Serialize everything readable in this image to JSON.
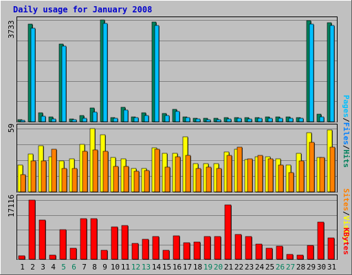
{
  "title": "Daily usage for January 2008",
  "colors": {
    "background": "#c0c0c0",
    "title": "#0000cc",
    "hits": "#00805c",
    "files": "#0080ff",
    "pages": "#00c0ff",
    "visits": "#ffff00",
    "sites": "#ff8000",
    "kbytes": "#ff0000",
    "weekday_label": "#000000",
    "weekend_label": "#00805c",
    "slash": "#000000"
  },
  "chart_data": [
    {
      "type": "bar",
      "panel": "hits-files-pages",
      "max_label": "3733",
      "ylim": [
        0,
        3733
      ],
      "categories": [
        "1",
        "2",
        "3",
        "4",
        "5",
        "6",
        "7",
        "8",
        "9",
        "10",
        "11",
        "12",
        "13",
        "14",
        "15",
        "16",
        "17",
        "18",
        "19",
        "20",
        "21",
        "22",
        "23",
        "24",
        "25",
        "26",
        "27",
        "28",
        "29",
        "30",
        "31"
      ],
      "weekend_days": [
        "5",
        "6",
        "12",
        "13",
        "19",
        "20",
        "26",
        "27"
      ],
      "legend": [
        {
          "name": "Pages",
          "color": "#00c0ff"
        },
        {
          "name": "Files",
          "color": "#0080ff"
        },
        {
          "name": "Hits",
          "color": "#00805c"
        }
      ],
      "series": [
        {
          "name": "Hits",
          "color": "#00805c",
          "values": [
            85,
            3590,
            330,
            170,
            2850,
            110,
            230,
            500,
            3733,
            140,
            520,
            180,
            330,
            3660,
            300,
            450,
            180,
            130,
            120,
            120,
            140,
            160,
            140,
            160,
            180,
            180,
            180,
            160,
            3710,
            290,
            3630
          ]
        },
        {
          "name": "Pages",
          "color": "#00c0ff",
          "values": [
            60,
            3440,
            190,
            100,
            2780,
            75,
            130,
            360,
            3600,
            120,
            420,
            140,
            230,
            3520,
            230,
            370,
            140,
            90,
            85,
            85,
            100,
            130,
            110,
            120,
            130,
            130,
            130,
            120,
            3570,
            170,
            3520
          ]
        }
      ]
    },
    {
      "type": "bar",
      "panel": "visits-sites",
      "max_label": "59",
      "ylim": [
        0,
        59
      ],
      "categories": [
        "1",
        "2",
        "3",
        "4",
        "5",
        "6",
        "7",
        "8",
        "9",
        "10",
        "11",
        "12",
        "13",
        "14",
        "15",
        "16",
        "17",
        "18",
        "19",
        "20",
        "21",
        "22",
        "23",
        "24",
        "25",
        "26",
        "27",
        "28",
        "29",
        "30",
        "31"
      ],
      "legend": [
        {
          "name": "Sites",
          "color": "#ff8000"
        },
        {
          "name": "Visits",
          "color": "#ffff00"
        }
      ],
      "series": [
        {
          "name": "Visits",
          "color": "#ffff00",
          "values": [
            25,
            35,
            43,
            33,
            29,
            31,
            44,
            59,
            53,
            32,
            31,
            22,
            22,
            41,
            36,
            36,
            51,
            26,
            26,
            26,
            37,
            40,
            30,
            33,
            33,
            31,
            25,
            36,
            55,
            32,
            58
          ]
        },
        {
          "name": "Sites",
          "color": "#ff8000",
          "values": [
            16,
            29,
            29,
            40,
            22,
            22,
            38,
            39,
            38,
            24,
            24,
            19,
            20,
            40,
            23,
            33,
            34,
            22,
            23,
            22,
            34,
            42,
            31,
            34,
            31,
            25,
            18,
            29,
            46,
            32,
            42
          ]
        }
      ]
    },
    {
      "type": "bar",
      "panel": "kbytes",
      "max_label": "17116",
      "ylim": [
        0,
        17116
      ],
      "categories": [
        "1",
        "2",
        "3",
        "4",
        "5",
        "6",
        "7",
        "8",
        "9",
        "10",
        "11",
        "12",
        "13",
        "14",
        "15",
        "16",
        "17",
        "18",
        "19",
        "20",
        "21",
        "22",
        "23",
        "24",
        "25",
        "26",
        "27",
        "28",
        "29",
        "30",
        "31"
      ],
      "legend": [
        {
          "name": "KBytes",
          "color": "#ff0000"
        }
      ],
      "series": [
        {
          "name": "KBytes",
          "color": "#ff0000",
          "values": [
            950,
            17116,
            11300,
            1200,
            8500,
            3100,
            11800,
            11800,
            2500,
            9300,
            9800,
            4600,
            5700,
            6600,
            2600,
            6700,
            4800,
            5000,
            6500,
            6500,
            15800,
            7100,
            6500,
            4300,
            3100,
            3800,
            1400,
            1200,
            3900,
            10800,
            6100
          ]
        }
      ]
    }
  ]
}
